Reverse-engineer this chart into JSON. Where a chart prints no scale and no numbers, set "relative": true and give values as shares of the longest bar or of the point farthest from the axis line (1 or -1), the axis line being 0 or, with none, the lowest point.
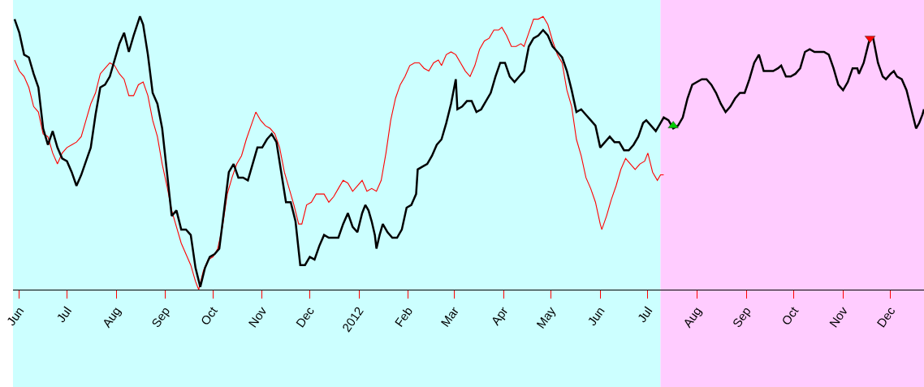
{
  "chart_data": {
    "type": "line",
    "relative": true,
    "grid": false,
    "marker": "none",
    "xlim": [
      "2011-05-28",
      "2012-12-22"
    ],
    "xticks": [
      {
        "value": "2011-06-01",
        "label": "Jun"
      },
      {
        "value": "2011-07-01",
        "label": "Jul"
      },
      {
        "value": "2011-08-01",
        "label": "Aug"
      },
      {
        "value": "2011-09-01",
        "label": "Sep"
      },
      {
        "value": "2011-10-01",
        "label": "Oct"
      },
      {
        "value": "2011-11-01",
        "label": "Nov"
      },
      {
        "value": "2011-12-01",
        "label": "Dec"
      },
      {
        "value": "2012-01-01",
        "label": "2012"
      },
      {
        "value": "2012-02-01",
        "label": "Feb"
      },
      {
        "value": "2012-03-01",
        "label": "Mar"
      },
      {
        "value": "2012-04-01",
        "label": "Apr"
      },
      {
        "value": "2012-05-01",
        "label": "May"
      },
      {
        "value": "2012-06-01",
        "label": "Jun"
      },
      {
        "value": "2012-07-01",
        "label": "Jul"
      },
      {
        "value": "2012-08-01",
        "label": "Aug"
      },
      {
        "value": "2012-09-01",
        "label": "Sep"
      },
      {
        "value": "2012-10-01",
        "label": "Oct"
      },
      {
        "value": "2012-11-01",
        "label": "Nov"
      },
      {
        "value": "2012-12-01",
        "label": "Dec"
      }
    ],
    "bands": [
      {
        "axis": "x",
        "from": "2011-05-28",
        "to": "2012-07-09",
        "color": "#ccffff"
      },
      {
        "axis": "x",
        "from": "2012-07-09",
        "to": "2012-12-22",
        "color": "#ffccff"
      }
    ],
    "series": [
      {
        "color": "#ff0000",
        "line_style": "solid",
        "x": [
          "2011-05-29",
          "2011-06-01",
          "2011-06-04",
          "2011-06-07",
          "2011-06-10",
          "2011-06-13",
          "2011-06-16",
          "2011-06-19",
          "2011-06-22",
          "2011-06-25",
          "2011-06-28",
          "2011-07-01",
          "2011-07-04",
          "2011-07-07",
          "2011-07-10",
          "2011-07-13",
          "2011-07-16",
          "2011-07-19",
          "2011-07-22",
          "2011-07-25",
          "2011-07-28",
          "2011-07-31",
          "2011-08-03",
          "2011-08-06",
          "2011-08-09",
          "2011-08-12",
          "2011-08-15",
          "2011-08-18",
          "2011-08-21",
          "2011-08-24",
          "2011-08-27",
          "2011-08-30",
          "2011-09-02",
          "2011-09-05",
          "2011-09-08",
          "2011-09-11",
          "2011-09-14",
          "2011-09-17",
          "2011-09-20",
          "2011-09-22",
          "2011-09-25",
          "2011-09-28",
          "2011-10-01",
          "2011-10-04",
          "2011-10-07",
          "2011-10-10",
          "2011-10-13",
          "2011-10-16",
          "2011-10-19",
          "2011-10-22",
          "2011-10-25",
          "2011-10-28",
          "2011-10-31",
          "2011-11-03",
          "2011-11-06",
          "2011-11-09",
          "2011-11-12",
          "2011-11-15",
          "2011-11-18",
          "2011-11-21",
          "2011-11-24",
          "2011-11-26",
          "2011-11-29",
          "2011-12-02",
          "2011-12-05",
          "2011-12-07",
          "2011-12-10",
          "2011-12-13",
          "2011-12-16",
          "2011-12-19",
          "2011-12-22",
          "2011-12-25",
          "2011-12-28",
          "2011-12-31",
          "2012-01-03",
          "2012-01-06",
          "2012-01-09",
          "2012-01-12",
          "2012-01-15",
          "2012-01-18",
          "2012-01-21",
          "2012-01-24",
          "2012-01-27",
          "2012-01-30",
          "2012-02-02",
          "2012-02-05",
          "2012-02-08",
          "2012-02-11",
          "2012-02-14",
          "2012-02-17",
          "2012-02-20",
          "2012-02-22",
          "2012-02-25",
          "2012-02-28",
          "2012-03-02",
          "2012-03-05",
          "2012-03-08",
          "2012-03-11",
          "2012-03-14",
          "2012-03-17",
          "2012-03-20",
          "2012-03-23",
          "2012-03-26",
          "2012-03-29",
          "2012-03-31",
          "2012-04-03",
          "2012-04-06",
          "2012-04-09",
          "2012-04-12",
          "2012-04-14",
          "2012-04-17",
          "2012-04-20",
          "2012-04-23",
          "2012-04-26",
          "2012-04-29",
          "2012-05-02",
          "2012-05-05",
          "2012-05-08",
          "2012-05-11",
          "2012-05-14",
          "2012-05-17",
          "2012-05-20",
          "2012-05-23",
          "2012-05-26",
          "2012-05-29",
          "2012-06-01",
          "2012-06-02",
          "2012-06-05",
          "2012-06-08",
          "2012-06-11",
          "2012-06-14",
          "2012-06-17",
          "2012-06-20",
          "2012-06-23",
          "2012-06-26",
          "2012-06-29",
          "2012-07-01",
          "2012-07-04",
          "2012-07-07",
          "2012-07-09",
          "2012-07-11"
        ],
        "values": [
          0.84,
          0.8,
          0.78,
          0.74,
          0.67,
          0.65,
          0.57,
          0.56,
          0.5,
          0.46,
          0.5,
          0.52,
          0.53,
          0.54,
          0.56,
          0.62,
          0.68,
          0.72,
          0.79,
          0.81,
          0.83,
          0.82,
          0.79,
          0.77,
          0.71,
          0.71,
          0.75,
          0.76,
          0.71,
          0.62,
          0.56,
          0.46,
          0.38,
          0.29,
          0.23,
          0.17,
          0.13,
          0.09,
          0.03,
          0.0,
          0.07,
          0.11,
          0.12,
          0.15,
          0.23,
          0.35,
          0.41,
          0.46,
          0.49,
          0.55,
          0.6,
          0.65,
          0.62,
          0.6,
          0.59,
          0.57,
          0.52,
          0.43,
          0.37,
          0.31,
          0.24,
          0.24,
          0.31,
          0.32,
          0.35,
          0.35,
          0.35,
          0.32,
          0.34,
          0.37,
          0.4,
          0.39,
          0.36,
          0.38,
          0.4,
          0.36,
          0.37,
          0.36,
          0.4,
          0.5,
          0.62,
          0.7,
          0.75,
          0.78,
          0.82,
          0.83,
          0.83,
          0.81,
          0.8,
          0.83,
          0.84,
          0.82,
          0.86,
          0.87,
          0.86,
          0.83,
          0.8,
          0.78,
          0.82,
          0.88,
          0.91,
          0.92,
          0.95,
          0.95,
          0.96,
          0.93,
          0.89,
          0.89,
          0.9,
          0.89,
          0.94,
          0.99,
          0.99,
          1.0,
          0.97,
          0.91,
          0.86,
          0.83,
          0.73,
          0.67,
          0.55,
          0.49,
          0.41,
          0.37,
          0.32,
          0.24,
          0.22,
          0.27,
          0.33,
          0.38,
          0.44,
          0.48,
          0.46,
          0.44,
          0.46,
          0.47,
          0.5,
          0.43,
          0.4,
          0.42,
          0.42
        ]
      },
      {
        "color": "#000000",
        "line_style": "solid",
        "x": [
          "2011-05-29",
          "2011-06-01",
          "2011-06-04",
          "2011-06-07",
          "2011-06-10",
          "2011-06-13",
          "2011-06-16",
          "2011-06-19",
          "2011-06-22",
          "2011-06-25",
          "2011-06-28",
          "2011-07-01",
          "2011-07-04",
          "2011-07-07",
          "2011-07-10",
          "2011-07-13",
          "2011-07-16",
          "2011-07-19",
          "2011-07-22",
          "2011-07-25",
          "2011-07-28",
          "2011-07-31",
          "2011-08-03",
          "2011-08-06",
          "2011-08-09",
          "2011-08-12",
          "2011-08-16",
          "2011-08-18",
          "2011-08-21",
          "2011-08-24",
          "2011-08-27",
          "2011-08-30",
          "2011-09-02",
          "2011-09-05",
          "2011-09-08",
          "2011-09-11",
          "2011-09-14",
          "2011-09-17",
          "2011-09-20",
          "2011-09-23",
          "2011-09-26",
          "2011-09-29",
          "2011-10-02",
          "2011-10-05",
          "2011-10-08",
          "2011-10-11",
          "2011-10-14",
          "2011-10-17",
          "2011-10-20",
          "2011-10-23",
          "2011-10-26",
          "2011-10-29",
          "2011-11-01",
          "2011-11-04",
          "2011-11-07",
          "2011-11-10",
          "2011-11-13",
          "2011-11-16",
          "2011-11-19",
          "2011-11-22",
          "2011-11-25",
          "2011-11-28",
          "2011-12-01",
          "2011-12-04",
          "2011-12-07",
          "2011-12-10",
          "2011-12-13",
          "2011-12-16",
          "2011-12-19",
          "2011-12-22",
          "2011-12-25",
          "2011-12-28",
          "2011-12-31",
          "2012-01-03",
          "2012-01-05",
          "2012-01-07",
          "2012-01-09",
          "2012-01-11",
          "2012-01-12",
          "2012-01-14",
          "2012-01-16",
          "2012-01-19",
          "2012-01-22",
          "2012-01-25",
          "2012-01-28",
          "2012-01-31",
          "2012-02-03",
          "2012-02-06",
          "2012-02-07",
          "2012-02-10",
          "2012-02-13",
          "2012-02-16",
          "2012-02-19",
          "2012-02-22",
          "2012-02-25",
          "2012-02-28",
          "2012-03-02",
          "2012-03-03",
          "2012-03-06",
          "2012-03-09",
          "2012-03-12",
          "2012-03-15",
          "2012-03-18",
          "2012-03-21",
          "2012-03-24",
          "2012-03-27",
          "2012-03-30",
          "2012-04-02",
          "2012-04-05",
          "2012-04-08",
          "2012-04-11",
          "2012-04-14",
          "2012-04-17",
          "2012-04-20",
          "2012-04-23",
          "2012-04-26",
          "2012-04-29",
          "2012-05-02",
          "2012-05-05",
          "2012-05-08",
          "2012-05-11",
          "2012-05-14",
          "2012-05-17",
          "2012-05-20",
          "2012-05-23",
          "2012-05-26",
          "2012-05-29",
          "2012-06-01",
          "2012-06-04",
          "2012-06-07",
          "2012-06-10",
          "2012-06-13",
          "2012-06-16",
          "2012-06-19",
          "2012-06-22",
          "2012-06-25",
          "2012-06-28",
          "2012-06-30",
          "2012-07-03",
          "2012-07-06",
          "2012-07-09",
          "2012-07-11",
          "2012-07-14",
          "2012-07-17",
          "2012-07-20",
          "2012-07-23",
          "2012-07-26",
          "2012-07-29",
          "2012-08-01",
          "2012-08-04",
          "2012-08-07",
          "2012-08-10",
          "2012-08-13",
          "2012-08-16",
          "2012-08-19",
          "2012-08-22",
          "2012-08-25",
          "2012-08-28",
          "2012-08-31",
          "2012-09-03",
          "2012-09-06",
          "2012-09-09",
          "2012-09-12",
          "2012-09-15",
          "2012-09-18",
          "2012-09-21",
          "2012-09-23",
          "2012-09-26",
          "2012-09-29",
          "2012-10-02",
          "2012-10-05",
          "2012-10-08",
          "2012-10-11",
          "2012-10-14",
          "2012-10-17",
          "2012-10-20",
          "2012-10-23",
          "2012-10-26",
          "2012-10-29",
          "2012-11-01",
          "2012-11-04",
          "2012-11-07",
          "2012-11-10",
          "2012-11-11",
          "2012-11-14",
          "2012-11-17",
          "2012-11-18",
          "2012-11-20",
          "2012-11-23",
          "2012-11-26",
          "2012-11-28",
          "2012-12-01",
          "2012-12-03",
          "2012-12-05",
          "2012-12-08",
          "2012-12-11",
          "2012-12-14",
          "2012-12-17",
          "2012-12-19",
          "2012-12-21",
          "2012-12-22"
        ],
        "values": [
          0.99,
          0.94,
          0.86,
          0.85,
          0.79,
          0.74,
          0.59,
          0.53,
          0.58,
          0.52,
          0.48,
          0.47,
          0.43,
          0.38,
          0.42,
          0.47,
          0.52,
          0.64,
          0.74,
          0.75,
          0.78,
          0.84,
          0.9,
          0.94,
          0.87,
          0.93,
          1.0,
          0.97,
          0.86,
          0.72,
          0.68,
          0.59,
          0.43,
          0.27,
          0.29,
          0.22,
          0.22,
          0.2,
          0.08,
          0.01,
          0.08,
          0.12,
          0.13,
          0.15,
          0.29,
          0.43,
          0.46,
          0.41,
          0.41,
          0.4,
          0.46,
          0.52,
          0.52,
          0.55,
          0.57,
          0.54,
          0.43,
          0.32,
          0.32,
          0.25,
          0.09,
          0.09,
          0.12,
          0.11,
          0.16,
          0.2,
          0.19,
          0.19,
          0.19,
          0.24,
          0.28,
          0.23,
          0.21,
          0.28,
          0.31,
          0.29,
          0.25,
          0.2,
          0.15,
          0.2,
          0.24,
          0.21,
          0.19,
          0.19,
          0.22,
          0.3,
          0.31,
          0.35,
          0.44,
          0.45,
          0.46,
          0.49,
          0.53,
          0.55,
          0.61,
          0.68,
          0.77,
          0.66,
          0.67,
          0.69,
          0.69,
          0.65,
          0.66,
          0.69,
          0.72,
          0.78,
          0.83,
          0.83,
          0.78,
          0.76,
          0.78,
          0.8,
          0.89,
          0.92,
          0.93,
          0.95,
          0.93,
          0.89,
          0.87,
          0.85,
          0.8,
          0.73,
          0.65,
          0.66,
          0.64,
          0.62,
          0.6,
          0.52,
          0.54,
          0.56,
          0.54,
          0.54,
          0.51,
          0.51,
          0.53,
          0.56,
          0.61,
          0.62,
          0.6,
          0.58,
          0.61,
          0.63,
          0.62,
          0.59,
          0.6,
          0.63,
          0.7,
          0.75,
          0.76,
          0.77,
          0.77,
          0.75,
          0.72,
          0.68,
          0.65,
          0.67,
          0.7,
          0.72,
          0.72,
          0.77,
          0.83,
          0.86,
          0.8,
          0.8,
          0.8,
          0.81,
          0.82,
          0.78,
          0.78,
          0.79,
          0.81,
          0.87,
          0.88,
          0.87,
          0.87,
          0.87,
          0.86,
          0.81,
          0.75,
          0.73,
          0.76,
          0.81,
          0.81,
          0.79,
          0.83,
          0.9,
          0.92,
          0.92,
          0.83,
          0.78,
          0.77,
          0.79,
          0.8,
          0.78,
          0.77,
          0.73,
          0.66,
          0.59,
          0.61,
          0.64,
          0.66
        ]
      },
      {
        "type": "scatter",
        "color": "#00cc00",
        "marker": "triangle",
        "x": [
          "2012-07-17"
        ],
        "values": [
          0.6
        ]
      },
      {
        "type": "scatter",
        "color": "#ff0000",
        "marker": "triangle-down",
        "x": [
          "2012-11-18"
        ],
        "values": [
          0.92
        ]
      }
    ]
  }
}
